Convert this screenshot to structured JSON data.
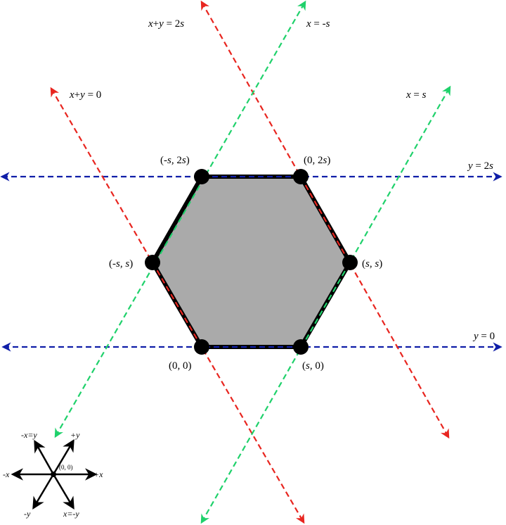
{
  "colors": {
    "red_lines": "#e8251f",
    "green_lines": "#1fd16b",
    "blue_lines": "#0f1ea8",
    "hexagon_fill": "#aaaaaa",
    "hexagon_stroke": "#000000",
    "vertex": "#000000",
    "background": "#ffffff"
  },
  "line_labels": {
    "x_plus_y_2s": {
      "a": "x",
      "b": "+",
      "c": "y",
      "d": " = 2",
      "e": "s"
    },
    "x_eq_neg_s": {
      "a": "x",
      "b": " = -",
      "c": "s"
    },
    "x_plus_y_0": {
      "a": "x",
      "b": "+",
      "c": "y",
      "d": " = 0"
    },
    "x_eq_s": {
      "a": "x",
      "b": " = ",
      "c": "s"
    },
    "y_eq_2s": {
      "a": "y",
      "b": " = 2",
      "c": "s"
    },
    "y_eq_0": {
      "a": "y",
      "b": " = 0"
    }
  },
  "vertex_labels": {
    "v_neg_s_2s": {
      "p1": "(-",
      "s1": "s",
      "p2": ", 2",
      "s2": "s",
      "p3": ")"
    },
    "v_0_2s": {
      "p1": "(0, 2",
      "s1": "s",
      "p2": ")"
    },
    "v_neg_s_s": {
      "p1": "(-",
      "s1": "s",
      "p2": ", ",
      "s2": "s",
      "p3": ")"
    },
    "v_s_s": {
      "p1": "(",
      "s1": "s",
      "p2": ", ",
      "s2": "s",
      "p3": ")"
    },
    "v_0_0": {
      "text": "(0, 0)"
    },
    "v_s_0": {
      "p1": "(",
      "s1": "s",
      "p2": ", 0)"
    }
  },
  "legend": {
    "neg_x_eq_y": "-x=y",
    "pos_y": "+y",
    "neg_x": "-x",
    "origin": "(0, 0)",
    "pos_x": "+x",
    "neg_y": "-y",
    "x_eq_neg_y": "x=-y"
  },
  "icons": [
    "vertex-dot",
    "arrow-head"
  ]
}
